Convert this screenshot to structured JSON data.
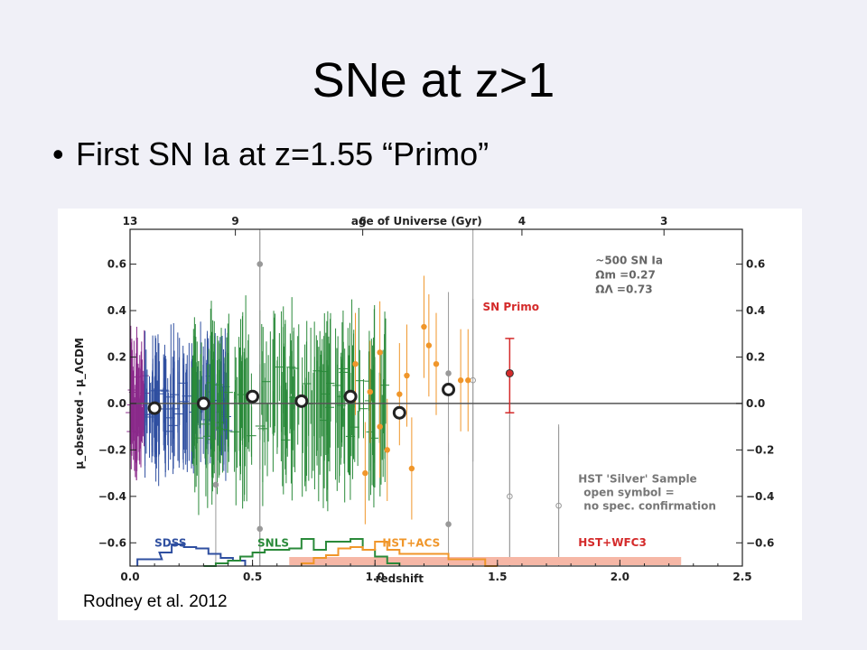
{
  "slide": {
    "title": "SNe at z>1",
    "bullet": "First SN Ia at z=1.55 “Primo”",
    "bullet_marker": "•",
    "caption": "Rodney et al. 2012"
  },
  "chart_data": {
    "type": "scatter",
    "xlabel": "redshift",
    "ylabel": "μ_observed - μ_ΛCDM",
    "top_axis_label": "age of Universe (Gyr)",
    "xlim": [
      0.0,
      2.5
    ],
    "ylim": [
      -0.7,
      0.75
    ],
    "x_ticks": [
      0.0,
      0.5,
      1.0,
      1.5,
      2.0,
      2.5
    ],
    "x_tick_labels": [
      "0.0",
      "0.5",
      "1.0",
      "1.5",
      "2.0",
      "2.5"
    ],
    "y_ticks": [
      -0.6,
      -0.4,
      -0.2,
      0.0,
      0.2,
      0.4,
      0.6
    ],
    "y_tick_labels": [
      "−0.6",
      "−0.4",
      "−0.2",
      "0.0",
      "0.2",
      "0.4",
      "0.6"
    ],
    "top_ticks": [
      {
        "z": 0.0,
        "label": "13"
      },
      {
        "z": 0.43,
        "label": "9"
      },
      {
        "z": 0.95,
        "label": "6"
      },
      {
        "z": 1.6,
        "label": "4"
      },
      {
        "z": 2.18,
        "label": "3"
      }
    ],
    "grid": false,
    "legend_text": [
      "~500 SN Ia",
      "Ωm =0.27",
      "ΩΛ =0.73"
    ],
    "annotations": {
      "primo": "SN Primo",
      "silver": [
        "HST 'Silver' Sample",
        "open symbol =",
        "no spec. confirmation"
      ]
    },
    "histogram_labels": [
      "SDSS",
      "SNLS",
      "HST+ACS",
      "HST+WFC3"
    ],
    "colors": {
      "lowz": "#8b2a8b",
      "sdss": "#2f4fa0",
      "snls": "#2a8a3a",
      "acs": "#f0962a",
      "wfc3": "#f6b7a6",
      "primo": "#d42a2a",
      "silver": "#999999",
      "binned": "#222222"
    },
    "binned_means": [
      {
        "z": 0.1,
        "mu": -0.02
      },
      {
        "z": 0.3,
        "mu": 0.0
      },
      {
        "z": 0.5,
        "mu": 0.03
      },
      {
        "z": 0.7,
        "mu": 0.01
      },
      {
        "z": 0.9,
        "mu": 0.03
      },
      {
        "z": 1.1,
        "mu": -0.04
      },
      {
        "z": 1.3,
        "mu": 0.06
      }
    ],
    "sn_primo": {
      "z": 1.55,
      "mu": 0.13,
      "err_low": 0.17,
      "err_high": 0.15
    },
    "acs_points": [
      {
        "z": 0.92,
        "mu": 0.17
      },
      {
        "z": 0.98,
        "mu": 0.05
      },
      {
        "z": 1.02,
        "mu": 0.22
      },
      {
        "z": 1.05,
        "mu": -0.2
      },
      {
        "z": 1.1,
        "mu": 0.04
      },
      {
        "z": 1.13,
        "mu": 0.12
      },
      {
        "z": 1.15,
        "mu": -0.28
      },
      {
        "z": 1.2,
        "mu": 0.33
      },
      {
        "z": 1.22,
        "mu": 0.25
      },
      {
        "z": 1.25,
        "mu": 0.17
      },
      {
        "z": 1.35,
        "mu": 0.1
      },
      {
        "z": 1.38,
        "mu": 0.1
      },
      {
        "z": 1.02,
        "mu": -0.1
      },
      {
        "z": 0.96,
        "mu": -0.3
      }
    ],
    "silver_points": [
      {
        "z": 0.53,
        "mu": 0.6,
        "open": false
      },
      {
        "z": 0.35,
        "mu": -0.35,
        "open": false
      },
      {
        "z": 0.53,
        "mu": -0.54,
        "open": false
      },
      {
        "z": 1.3,
        "mu": 0.13,
        "open": false
      },
      {
        "z": 1.3,
        "mu": -0.52,
        "open": false
      },
      {
        "z": 1.4,
        "mu": 0.1,
        "open": true
      },
      {
        "z": 1.55,
        "mu": -0.4,
        "open": true
      },
      {
        "z": 1.75,
        "mu": -0.44,
        "open": true
      }
    ],
    "histograms": {
      "sdss": [
        [
          0.03,
          0.05
        ],
        [
          0.08,
          0.05
        ],
        [
          0.12,
          0.1
        ],
        [
          0.17,
          0.16
        ],
        [
          0.22,
          0.14
        ],
        [
          0.27,
          0.13
        ],
        [
          0.32,
          0.09
        ],
        [
          0.37,
          0.06
        ],
        [
          0.42,
          0.04
        ]
      ],
      "snls": [
        [
          0.3,
          0.0
        ],
        [
          0.35,
          0.02
        ],
        [
          0.4,
          0.04
        ],
        [
          0.45,
          0.07
        ],
        [
          0.5,
          0.1
        ],
        [
          0.55,
          0.12
        ],
        [
          0.6,
          0.12
        ],
        [
          0.65,
          0.13
        ],
        [
          0.7,
          0.2
        ],
        [
          0.75,
          0.12
        ],
        [
          0.8,
          0.18
        ],
        [
          0.85,
          0.18
        ],
        [
          0.9,
          0.2
        ],
        [
          0.95,
          0.12
        ],
        [
          1.0,
          0.07
        ],
        [
          1.05,
          0.02
        ]
      ],
      "acs": [
        [
          0.7,
          0.02
        ],
        [
          0.75,
          0.06
        ],
        [
          0.8,
          0.08
        ],
        [
          0.85,
          0.13
        ],
        [
          0.9,
          0.14
        ],
        [
          0.95,
          0.12
        ],
        [
          1.0,
          0.18
        ],
        [
          1.05,
          0.12
        ],
        [
          1.1,
          0.09
        ],
        [
          1.15,
          0.09
        ],
        [
          1.2,
          0.09
        ],
        [
          1.25,
          0.09
        ],
        [
          1.3,
          0.05
        ],
        [
          1.35,
          0.05
        ],
        [
          1.4,
          0.05
        ],
        [
          1.45,
          0.0
        ]
      ]
    },
    "wfc3_band": {
      "z_min": 0.65,
      "z_max": 2.25
    }
  }
}
